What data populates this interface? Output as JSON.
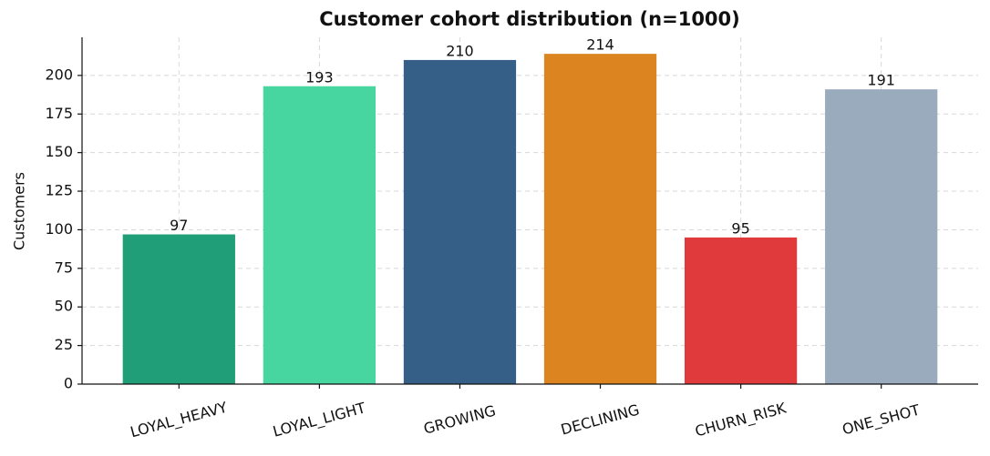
{
  "chart_data": {
    "type": "bar",
    "title": "Customer cohort distribution (n=1000)",
    "y_label": "Customers",
    "categories": [
      "LOYAL_HEAVY",
      "LOYAL_LIGHT",
      "GROWING",
      "DECLINING",
      "CHURN_RISK",
      "ONE_SHOT"
    ],
    "values": [
      97,
      193,
      210,
      214,
      95,
      191
    ],
    "colors": [
      "#1f9e78",
      "#48d6a0",
      "#355f87",
      "#db8420",
      "#e03a3c",
      "#9aabbd"
    ],
    "ylim": [
      0,
      224.7
    ],
    "yticks": [
      0,
      25,
      50,
      75,
      100,
      125,
      150,
      175,
      200
    ],
    "grid": true
  }
}
